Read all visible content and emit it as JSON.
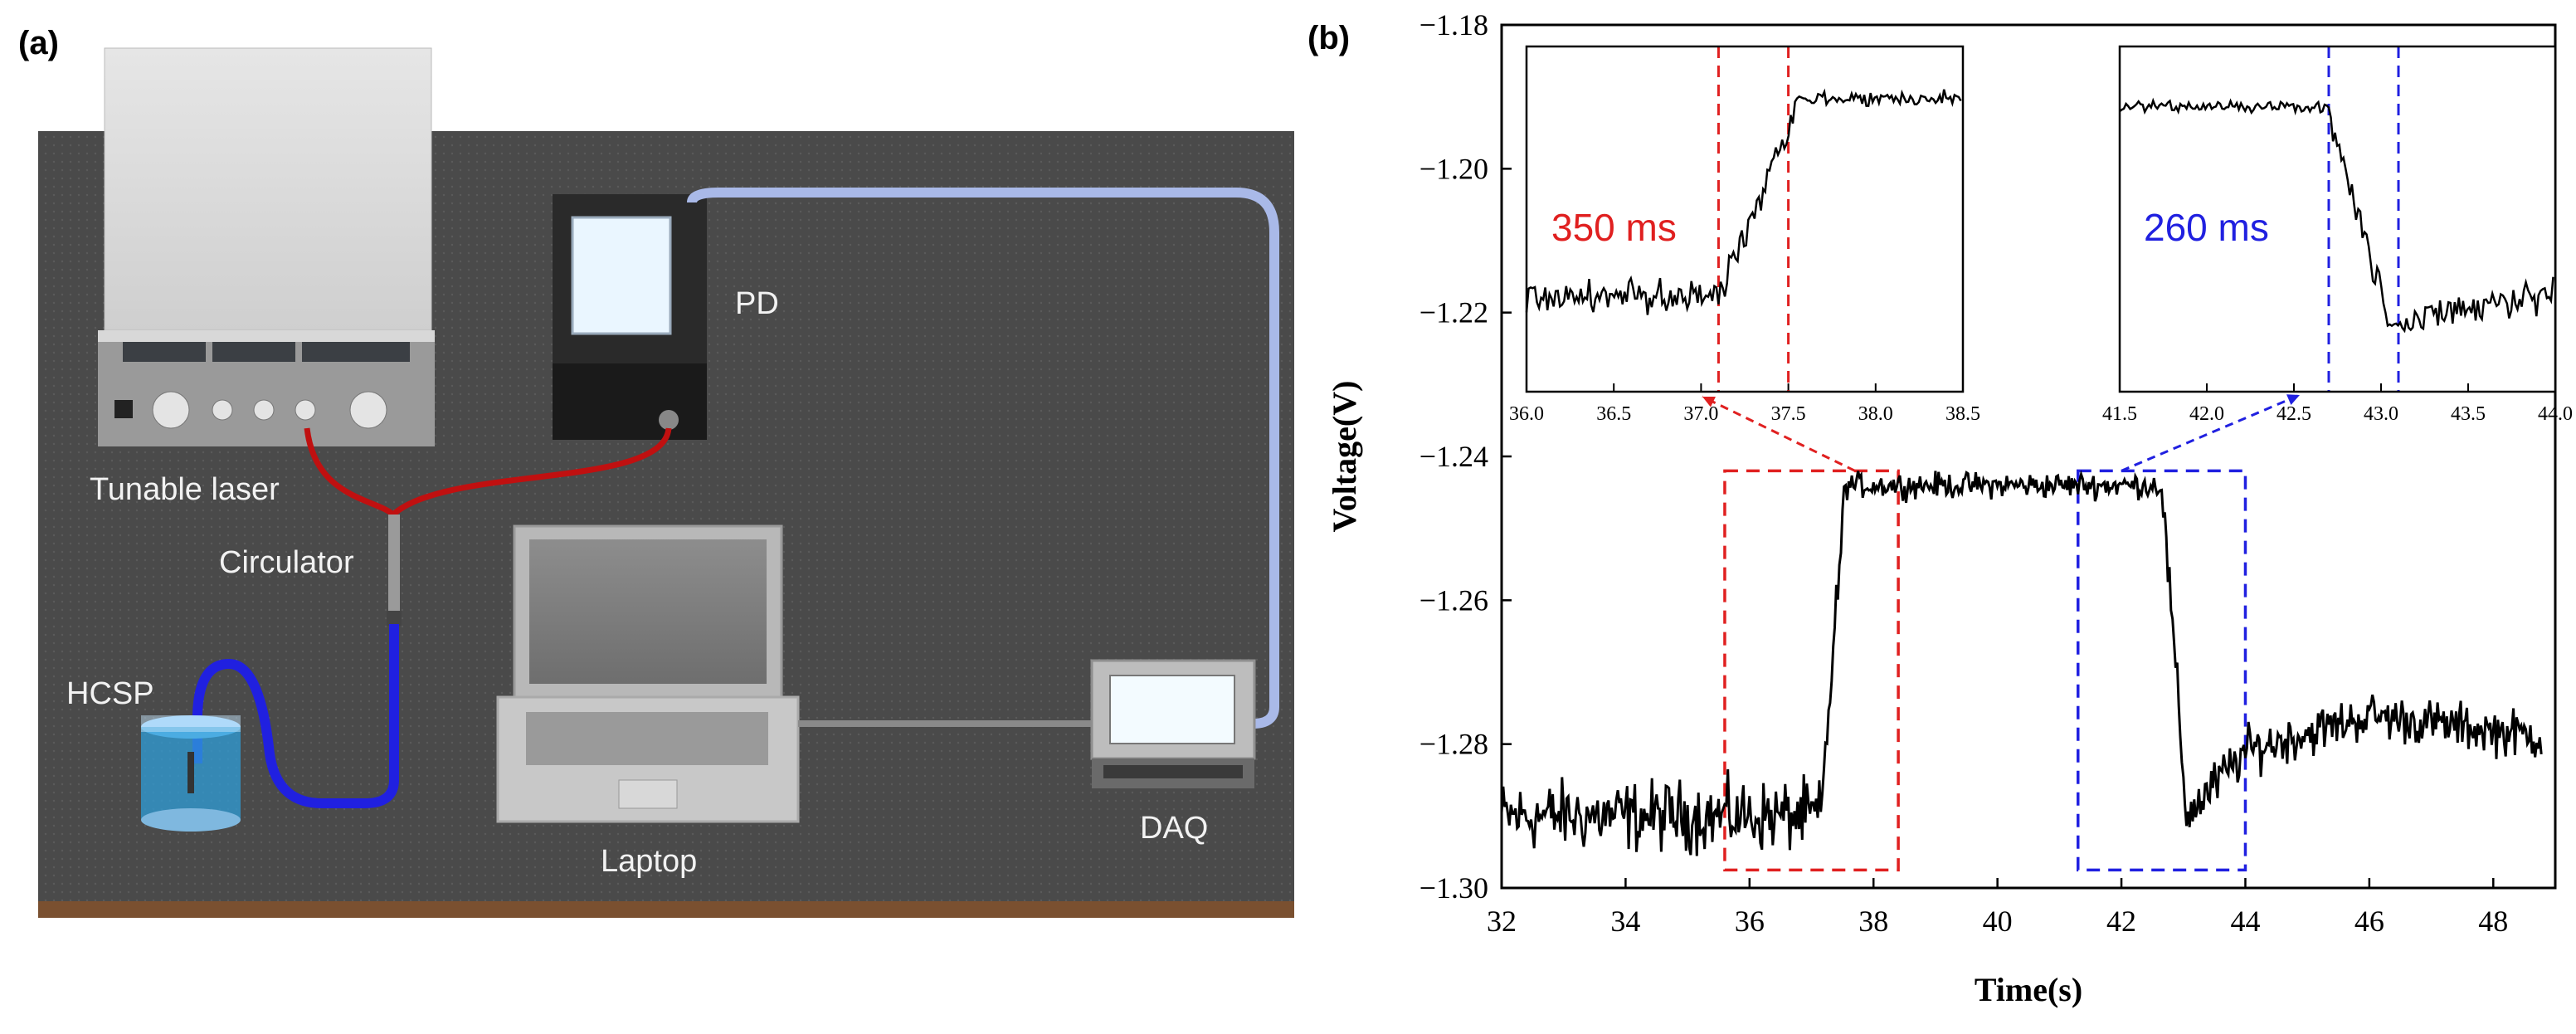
{
  "panels": {
    "a": "(a)",
    "b": "(b)"
  },
  "setup": {
    "labels": {
      "tunable_laser": "Tunable laser",
      "pd": "PD",
      "circulator": "Circulator",
      "hcsp": "HCSP",
      "laptop": "Laptop",
      "daq": "DAQ"
    },
    "colors": {
      "table": "#4a4a4a",
      "table_edge": "#7a5030",
      "fiber_red": "#c01010",
      "fiber_blue": "#2020e0",
      "fiber_light": "#a9b9e8",
      "cable": "#8a8a8a"
    }
  },
  "chart_data": {
    "type": "line",
    "xlabel": "Time(s)",
    "ylabel": "Voltage(V)",
    "xlim": [
      32,
      49
    ],
    "ylim": [
      -1.3,
      -1.18
    ],
    "xticks": [
      32,
      34,
      36,
      38,
      40,
      42,
      44,
      46,
      48
    ],
    "yticks": [
      -1.3,
      -1.28,
      -1.26,
      -1.24,
      -1.22,
      -1.2,
      -1.18
    ],
    "series": [
      {
        "name": "voltage",
        "color": "#000000",
        "segments": [
          {
            "x0": 32.0,
            "x1": 37.15,
            "level": -1.29,
            "noise": 0.0042
          },
          {
            "x0": 37.15,
            "x1": 37.55,
            "from": -1.29,
            "to": -1.244,
            "noise": 0.003
          },
          {
            "x0": 37.55,
            "x1": 42.65,
            "level": -1.244,
            "noise": 0.0015
          },
          {
            "x0": 42.65,
            "x1": 43.05,
            "from": -1.244,
            "to": -1.29,
            "noise": 0.003
          },
          {
            "x0": 43.05,
            "x1": 44.0,
            "from": -1.29,
            "to": -1.281,
            "noise": 0.003
          },
          {
            "x0": 44.0,
            "x1": 46.0,
            "from": -1.281,
            "to": -1.276,
            "noise": 0.0028
          },
          {
            "x0": 46.0,
            "x1": 48.8,
            "from": -1.276,
            "to": -1.279,
            "noise": 0.0028
          }
        ]
      }
    ],
    "zoom_boxes": [
      {
        "x": [
          35.6,
          38.4
        ],
        "y": [
          -1.2975,
          -1.242
        ],
        "color": "#e02020"
      },
      {
        "x": [
          41.3,
          44.0
        ],
        "y": [
          -1.2975,
          -1.242
        ],
        "color": "#2020e0"
      }
    ],
    "insets": [
      {
        "name": "rise",
        "xlim": [
          36.0,
          38.5
        ],
        "ylim": [
          -1.24,
          -1.18
        ],
        "xticks": [
          "36.0",
          "36.5",
          "37.0",
          "37.5",
          "38.0",
          "38.5"
        ],
        "vlines": [
          37.1,
          37.5
        ],
        "line_color": "#e02020",
        "annotation": "350 ms",
        "annotation_color": "#e02020",
        "segments": [
          {
            "x0": 36.0,
            "x1": 37.1,
            "level": -1.2235,
            "noise": 0.0025
          },
          {
            "x0": 37.1,
            "x1": 37.55,
            "from": -1.2235,
            "to": -1.1895,
            "noise": 0.0025
          },
          {
            "x0": 37.55,
            "x1": 38.5,
            "level": -1.189,
            "noise": 0.0011
          }
        ]
      },
      {
        "name": "fall",
        "xlim": [
          41.5,
          44.0
        ],
        "ylim": [
          -1.24,
          -1.18
        ],
        "xticks": [
          "41.5",
          "42.0",
          "42.5",
          "43.0",
          "43.5",
          "44.0"
        ],
        "vlines": [
          42.7,
          43.1
        ],
        "line_color": "#2020e0",
        "annotation": "260 ms",
        "annotation_color": "#2020e0",
        "segments": [
          {
            "x0": 41.5,
            "x1": 42.7,
            "level": -1.1905,
            "noise": 0.0008
          },
          {
            "x0": 42.7,
            "x1": 43.05,
            "from": -1.1905,
            "to": -1.2285,
            "noise": 0.0025
          },
          {
            "x0": 43.05,
            "x1": 44.0,
            "from": -1.2285,
            "to": -1.2225,
            "noise": 0.0025
          }
        ]
      }
    ]
  }
}
